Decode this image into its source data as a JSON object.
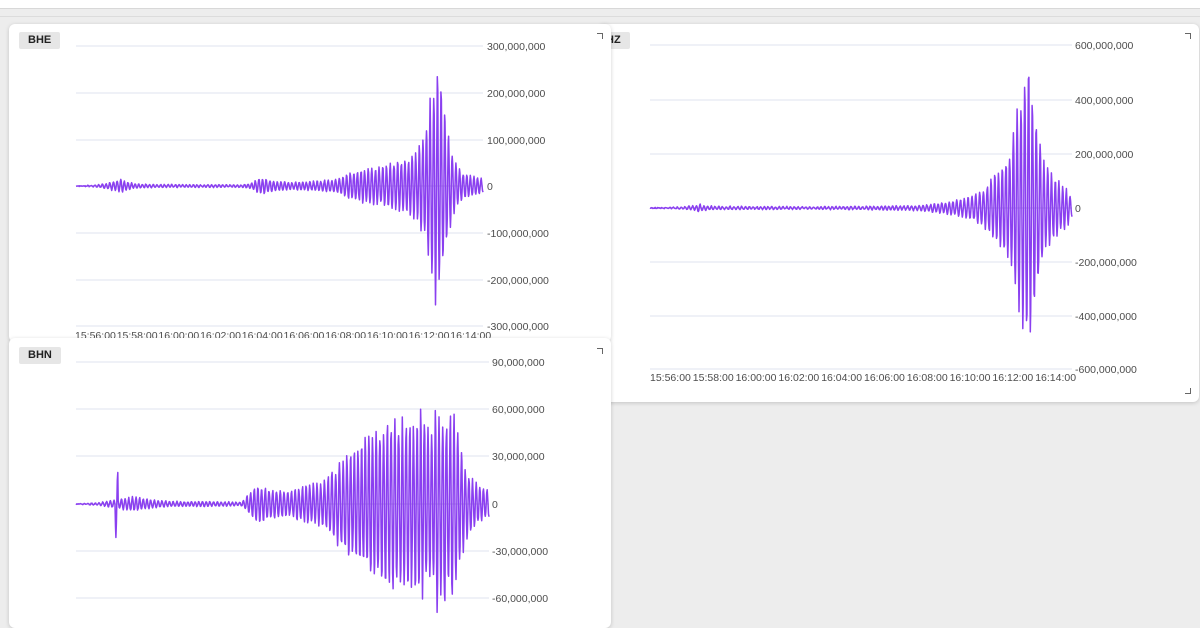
{
  "colors": {
    "trace": "#8a3ff0",
    "grid": "#dfe3ef",
    "axis_text": "#4d4d4d"
  },
  "chart_data": [
    {
      "id": "bhz",
      "type": "line",
      "title": "BHZ",
      "title_visible": "HZ",
      "xlabel": "",
      "ylabel": "",
      "x_ticks": [
        "15:56:00",
        "15:58:00",
        "16:00:00",
        "16:02:00",
        "16:04:00",
        "16:06:00",
        "16:08:00",
        "16:10:00",
        "16:12:00",
        "16:14:00"
      ],
      "y_ticks": [
        "600,000,000",
        "400,000,000",
        "200,000,000",
        "0",
        "-200,000,000",
        "-400,000,000",
        "-600,000,000"
      ],
      "ylim": [
        -600000000,
        600000000
      ],
      "xlim": [
        "15:56:00",
        "16:14:40"
      ],
      "grid": true,
      "series": [
        {
          "peaks": [
            [
              "15:56:00",
              0.0
            ],
            [
              "15:57:20",
              0.008
            ],
            [
              "15:58:10",
              0.02
            ],
            [
              "15:59:00",
              0.01
            ],
            [
              "16:00:00",
              0.012
            ],
            [
              "16:01:00",
              0.01
            ],
            [
              "16:02:30",
              0.008
            ],
            [
              "16:04:00",
              0.01
            ],
            [
              "16:05:40",
              0.012
            ],
            [
              "16:07:00",
              0.014
            ],
            [
              "16:08:00",
              0.02
            ],
            [
              "16:09:00",
              0.04
            ],
            [
              "16:09:40",
              0.06
            ],
            [
              "16:10:10",
              0.08
            ],
            [
              "16:10:40",
              0.12
            ],
            [
              "16:11:10",
              0.22
            ],
            [
              "16:11:40",
              0.32
            ],
            [
              "16:12:00",
              0.46
            ],
            [
              "16:12:15",
              0.7
            ],
            [
              "16:12:30",
              0.86
            ],
            [
              "16:12:45",
              1.0
            ],
            [
              "16:13:00",
              0.72
            ],
            [
              "16:13:15",
              0.5
            ],
            [
              "16:13:30",
              0.3
            ],
            [
              "16:14:00",
              0.2
            ],
            [
              "16:14:30",
              0.12
            ],
            [
              "16:14:40",
              0.06
            ]
          ],
          "spikes": [
            [
              "15:58:10",
              0.03
            ]
          ]
        }
      ]
    },
    {
      "id": "bhe",
      "type": "line",
      "title": "BHE",
      "xlabel": "",
      "ylabel": "",
      "x_ticks": [
        "15:56:00",
        "15:58:00",
        "16:00:00",
        "16:02:00",
        "16:04:00",
        "16:06:00",
        "16:08:00",
        "16:10:00",
        "16:12:00",
        "16:14:00"
      ],
      "y_ticks": [
        "300,000,000",
        "200,000,000",
        "100,000,000",
        "0",
        "-100,000,000",
        "-200,000,000",
        "-300,000,000"
      ],
      "ylim": [
        -300000000,
        300000000
      ],
      "xlim": [
        "15:56:00",
        "16:14:40"
      ],
      "grid": true,
      "series": [
        {
          "peaks": [
            [
              "15:56:00",
              0.0
            ],
            [
              "15:57:00",
              0.008
            ],
            [
              "15:58:05",
              0.05
            ],
            [
              "15:58:40",
              0.02
            ],
            [
              "15:59:30",
              0.012
            ],
            [
              "16:00:30",
              0.012
            ],
            [
              "16:02:00",
              0.01
            ],
            [
              "16:03:30",
              0.01
            ],
            [
              "16:04:00",
              0.02
            ],
            [
              "16:04:30",
              0.07
            ],
            [
              "16:05:10",
              0.04
            ],
            [
              "16:06:00",
              0.03
            ],
            [
              "16:07:00",
              0.04
            ],
            [
              "16:08:00",
              0.06
            ],
            [
              "16:08:40",
              0.12
            ],
            [
              "16:09:20",
              0.14
            ],
            [
              "16:10:00",
              0.16
            ],
            [
              "16:10:40",
              0.2
            ],
            [
              "16:11:10",
              0.22
            ],
            [
              "16:11:40",
              0.28
            ],
            [
              "16:12:00",
              0.45
            ],
            [
              "16:12:15",
              0.7
            ],
            [
              "16:12:30",
              1.0
            ],
            [
              "16:12:45",
              0.78
            ],
            [
              "16:13:00",
              0.5
            ],
            [
              "16:13:20",
              0.24
            ],
            [
              "16:13:45",
              0.1
            ],
            [
              "16:14:15",
              0.08
            ],
            [
              "16:14:40",
              0.06
            ]
          ],
          "spikes": [
            [
              "15:58:05",
              0.06
            ]
          ]
        }
      ]
    },
    {
      "id": "bhn",
      "type": "line",
      "title": "BHN",
      "xlabel": "",
      "ylabel": "",
      "y_ticks": [
        "90,000,000",
        "60,000,000",
        "30,000,000",
        "0",
        "-30,000,000",
        "-60,000,000"
      ],
      "ylim": [
        -90000000,
        90000000
      ],
      "xlim": [
        "15:56:00",
        "16:14:40"
      ],
      "grid": true,
      "series": [
        {
          "peaks": [
            [
              "15:56:00",
              0.0
            ],
            [
              "15:57:00",
              0.01
            ],
            [
              "15:58:00",
              0.04
            ],
            [
              "15:58:40",
              0.06
            ],
            [
              "15:59:30",
              0.03
            ],
            [
              "16:00:30",
              0.02
            ],
            [
              "16:02:00",
              0.02
            ],
            [
              "16:03:30",
              0.015
            ],
            [
              "16:04:10",
              0.15
            ],
            [
              "16:04:50",
              0.12
            ],
            [
              "16:05:40",
              0.1
            ],
            [
              "16:06:30",
              0.16
            ],
            [
              "16:07:10",
              0.18
            ],
            [
              "16:08:00",
              0.36
            ],
            [
              "16:08:40",
              0.48
            ],
            [
              "16:09:20",
              0.58
            ],
            [
              "16:10:00",
              0.66
            ],
            [
              "16:10:40",
              0.7
            ],
            [
              "16:11:20",
              0.68
            ],
            [
              "16:11:40",
              0.76
            ],
            [
              "16:12:00",
              0.6
            ],
            [
              "16:12:20",
              0.84
            ],
            [
              "16:12:40",
              0.6
            ],
            [
              "16:13:00",
              0.78
            ],
            [
              "16:13:20",
              0.5
            ],
            [
              "16:13:40",
              0.28
            ],
            [
              "16:14:00",
              0.18
            ],
            [
              "16:14:40",
              0.1
            ]
          ],
          "spikes": [
            [
              "15:57:50",
              0.26
            ],
            [
              "16:12:40",
              0.93
            ]
          ]
        }
      ]
    }
  ]
}
